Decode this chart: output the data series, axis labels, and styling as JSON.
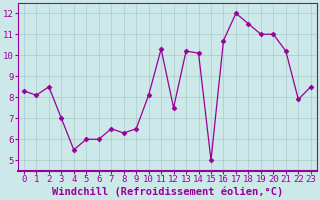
{
  "x": [
    0,
    1,
    2,
    3,
    4,
    5,
    6,
    7,
    8,
    9,
    10,
    11,
    12,
    13,
    14,
    15,
    16,
    17,
    18,
    19,
    20,
    21,
    22,
    23
  ],
  "y": [
    8.3,
    8.1,
    8.5,
    7.0,
    5.5,
    6.0,
    6.0,
    6.5,
    6.3,
    6.5,
    8.1,
    10.3,
    7.5,
    10.2,
    10.1,
    5.0,
    10.7,
    12.0,
    11.5,
    11.0,
    11.0,
    10.2,
    7.9,
    8.5
  ],
  "line_color": "#990099",
  "marker": "D",
  "markersize": 2.5,
  "linewidth": 0.9,
  "xlabel": "Windchill (Refroidissement éolien,°C)",
  "xlim": [
    -0.5,
    23.5
  ],
  "ylim": [
    4.5,
    12.5
  ],
  "yticks": [
    5,
    6,
    7,
    8,
    9,
    10,
    11,
    12
  ],
  "xticks": [
    0,
    1,
    2,
    3,
    4,
    5,
    6,
    7,
    8,
    9,
    10,
    11,
    12,
    13,
    14,
    15,
    16,
    17,
    18,
    19,
    20,
    21,
    22,
    23
  ],
  "background_color": "#cce8e8",
  "grid_color": "#aacccc",
  "tick_label_fontsize": 6.5,
  "xlabel_fontsize": 7.5
}
